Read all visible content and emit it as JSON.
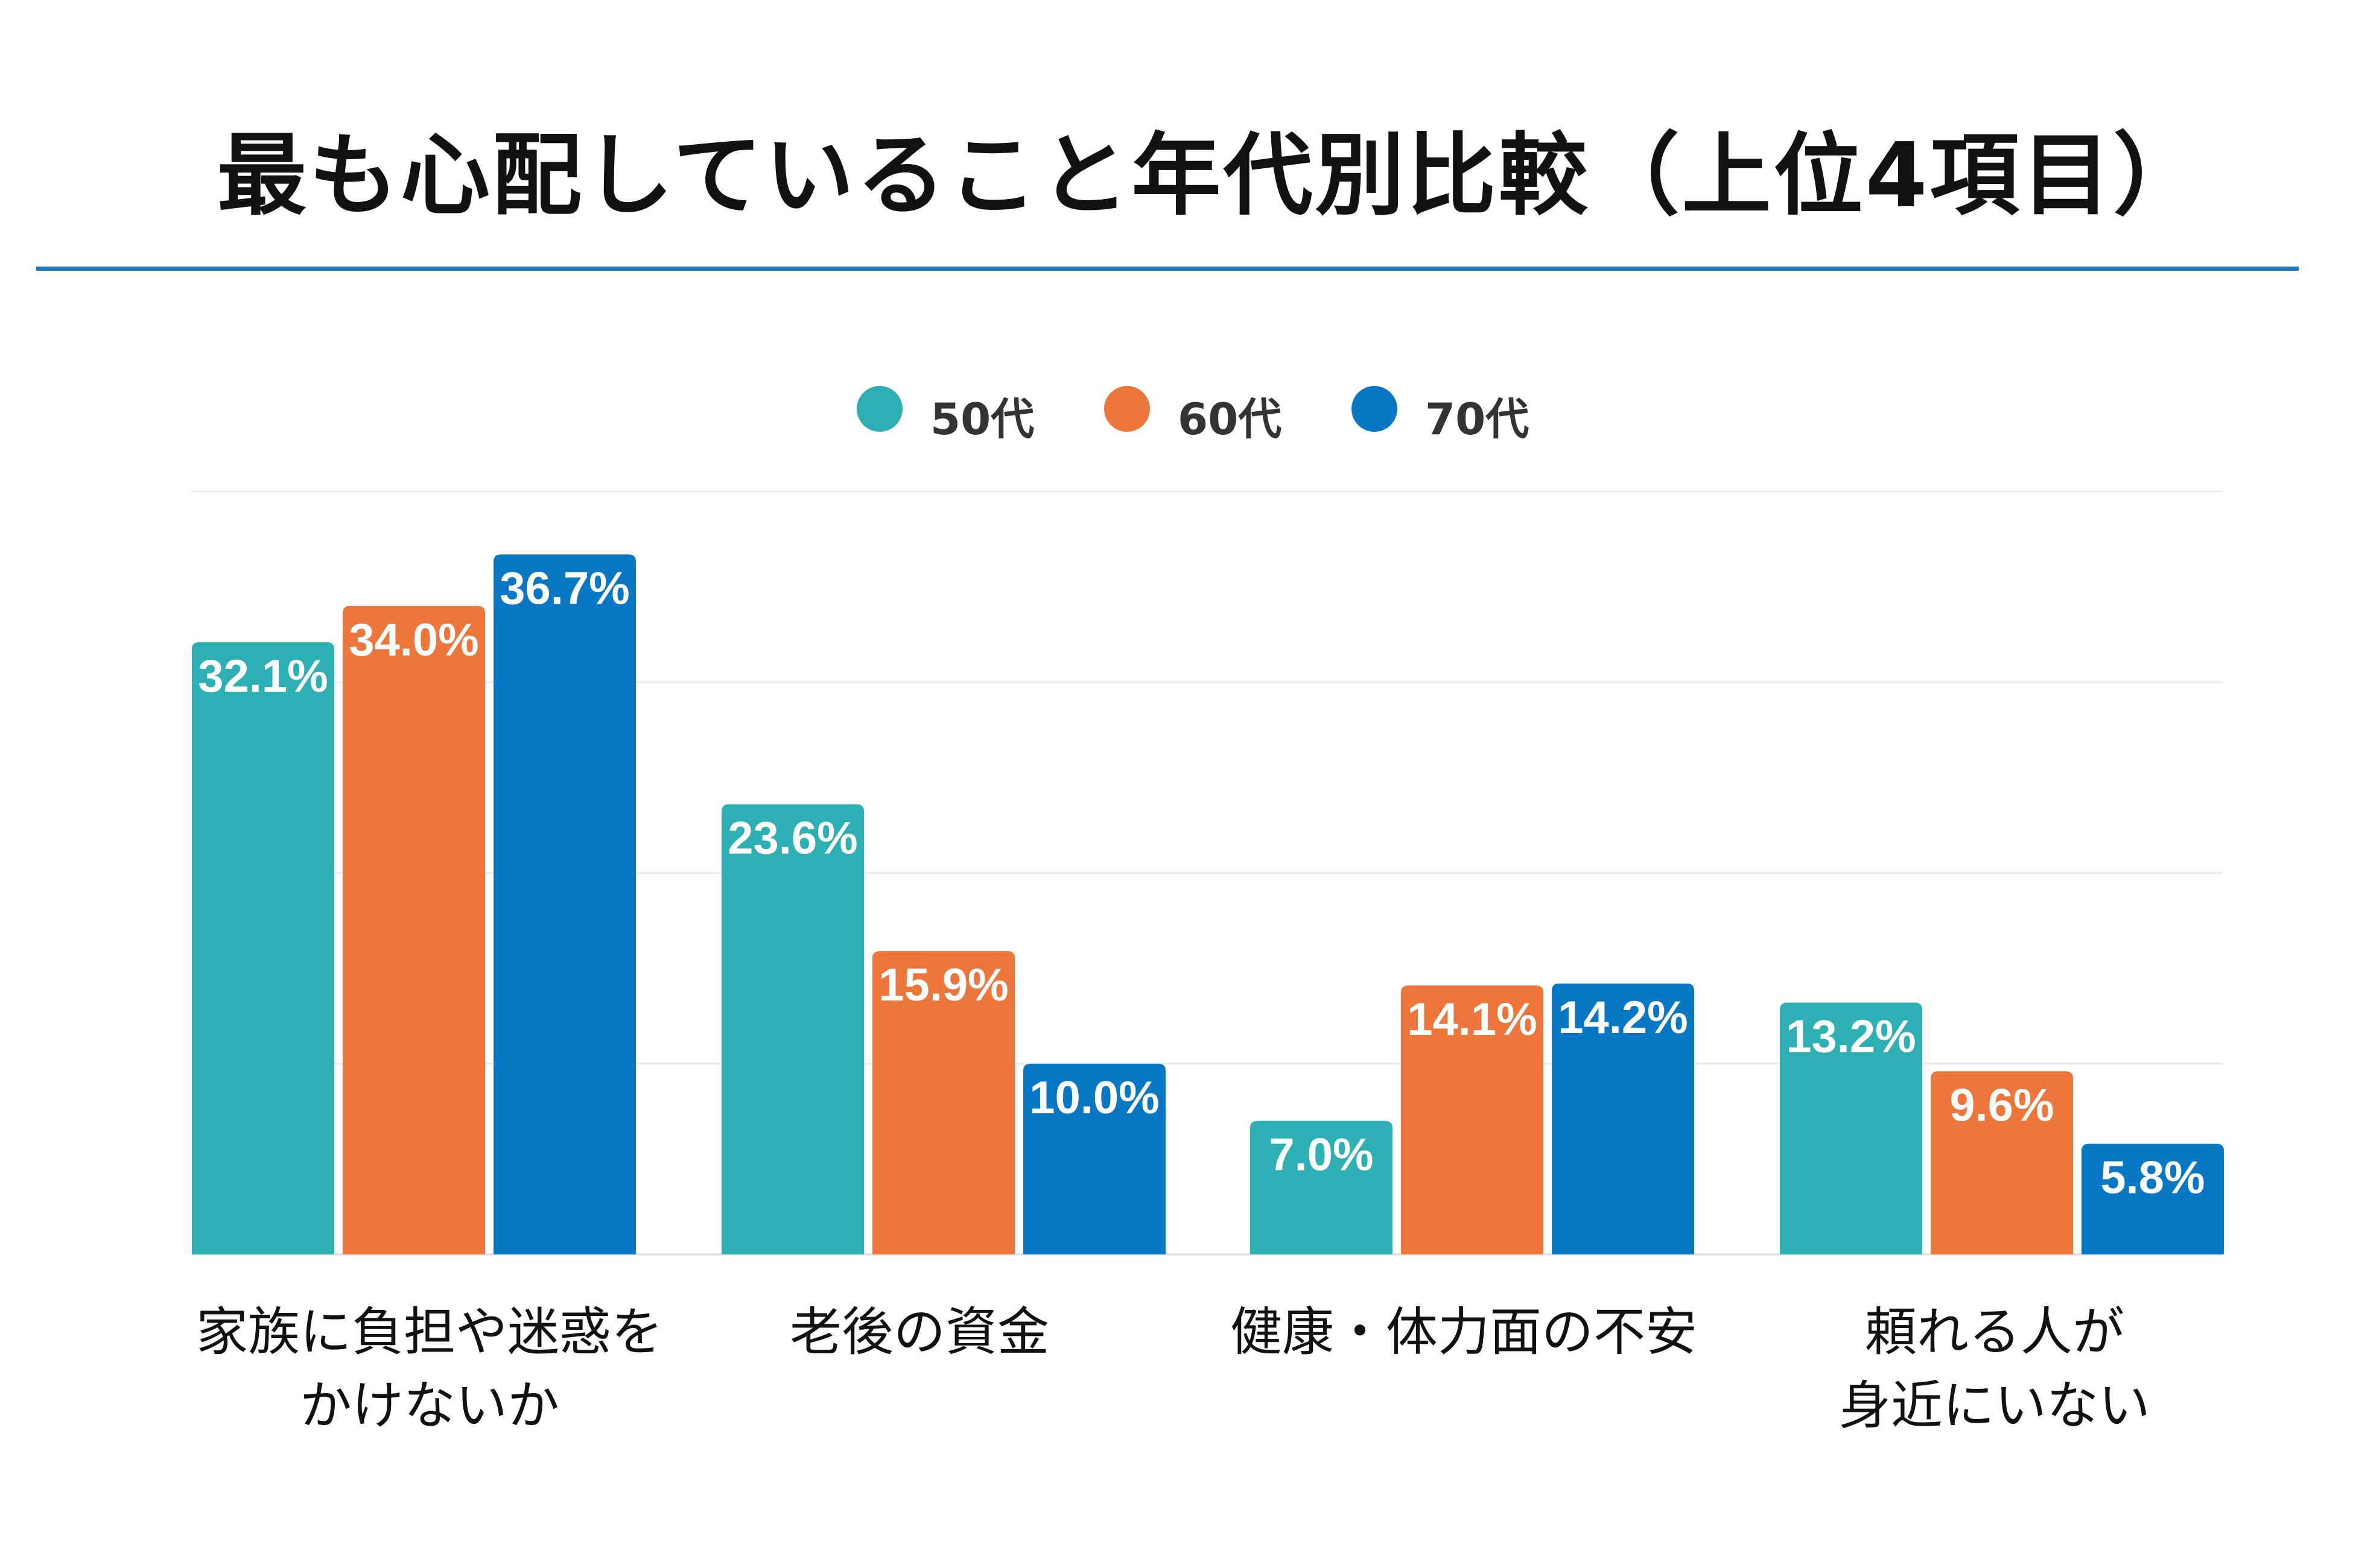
{
  "header": {
    "title": "最も心配していること年代別比較（上位4項目）"
  },
  "colors": {
    "rule": "#1f77c0",
    "grid": "#ececec",
    "baseline": "#dddddd",
    "label": "#ffffff"
  },
  "chart_data": {
    "type": "bar",
    "title": "最も心配していること年代別比較（上位4項目）",
    "categories": [
      {
        "line1": "家族に負担や迷惑を",
        "line2": "かけないか"
      },
      {
        "line1": "老後の資金",
        "line2": ""
      },
      {
        "line1": "健康・体力面の不安",
        "line2": ""
      },
      {
        "line1": "頼れる人が",
        "line2": "身近にいない"
      }
    ],
    "series": [
      {
        "name": "50代",
        "color": "#2cb0b3",
        "values": [
          32.1,
          23.6,
          7.0,
          13.2
        ],
        "labels": [
          "32.1%",
          "23.6%",
          "7.0%",
          "13.2%"
        ]
      },
      {
        "name": "60代",
        "color": "#ed763b",
        "values": [
          34.0,
          15.9,
          14.1,
          9.6
        ],
        "labels": [
          "34.0%",
          "15.9%",
          "14.1%",
          "9.6%"
        ]
      },
      {
        "name": "70代",
        "color": "#0878c5",
        "values": [
          36.7,
          10.0,
          14.2,
          5.8
        ],
        "labels": [
          "36.7%",
          "10.0%",
          "14.2%",
          "5.8%"
        ]
      }
    ],
    "ylim": [
      0,
      40
    ],
    "grid_step": 10,
    "legend": "top-center",
    "xlabel": "",
    "ylabel": ""
  }
}
